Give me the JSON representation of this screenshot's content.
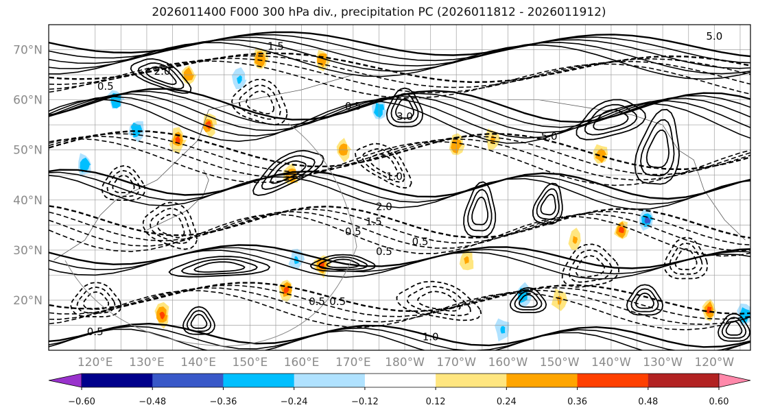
{
  "title": "2026011400 F000 300 hPa div., precipitation PC (2026011812 - 2026011912)",
  "lat_ticks": [
    {
      "lat": 70,
      "label": "70°N"
    },
    {
      "lat": 60,
      "label": "60°N"
    },
    {
      "lat": 50,
      "label": "50°N"
    },
    {
      "lat": 40,
      "label": "40°N"
    },
    {
      "lat": 30,
      "label": "30°N"
    },
    {
      "lat": 20,
      "label": "20°N"
    }
  ],
  "lon_ticks": [
    {
      "lon": 120,
      "label": "120°E"
    },
    {
      "lon": 130,
      "label": "130°E"
    },
    {
      "lon": 140,
      "label": "140°E"
    },
    {
      "lon": 150,
      "label": "150°E"
    },
    {
      "lon": 160,
      "label": "160°E"
    },
    {
      "lon": 170,
      "label": "170°E"
    },
    {
      "lon": 180,
      "label": "180°W"
    },
    {
      "lon": 190,
      "label": "170°W"
    },
    {
      "lon": 200,
      "label": "160°W"
    },
    {
      "lon": 210,
      "label": "150°W"
    },
    {
      "lon": 220,
      "label": "140°W"
    },
    {
      "lon": 230,
      "label": "130°W"
    },
    {
      "lon": 240,
      "label": "120°W"
    }
  ],
  "map_extent": {
    "lon_min": 111,
    "lon_max": 247,
    "lat_min": 10,
    "lat_max": 75
  },
  "colorbar": {
    "bins": [
      "#9932cc",
      "#00008b",
      "#3858c8",
      "#00bfff",
      "#b0e2ff",
      "#ffffff",
      "#ffe680",
      "#ffa500",
      "#ff4000",
      "#b22222",
      "#ff88aa"
    ],
    "ticks": [
      {
        "value": -0.6,
        "label": "−0.60"
      },
      {
        "value": -0.48,
        "label": "−0.48"
      },
      {
        "value": -0.36,
        "label": "−0.36"
      },
      {
        "value": -0.24,
        "label": "−0.24"
      },
      {
        "value": -0.12,
        "label": "−0.12"
      },
      {
        "value": 0.12,
        "label": "0.12"
      },
      {
        "value": 0.24,
        "label": "0.24"
      },
      {
        "value": 0.36,
        "label": "0.36"
      },
      {
        "value": 0.48,
        "label": "0.48"
      },
      {
        "value": 0.6,
        "label": "0.60"
      }
    ]
  },
  "contour_labels": [
    {
      "lon": 240,
      "lat": 72,
      "text": "5.0"
    },
    {
      "lon": 155,
      "lat": 70,
      "text": "1.5"
    },
    {
      "lon": 180,
      "lat": 56,
      "text": "3.0"
    },
    {
      "lon": 208,
      "lat": 52,
      "text": "5.0"
    },
    {
      "lon": 178,
      "lat": 44,
      "text": "1.0"
    },
    {
      "lon": 176,
      "lat": 38,
      "text": "2.0"
    },
    {
      "lon": 174,
      "lat": 35,
      "text": "1.5"
    },
    {
      "lon": 170,
      "lat": 33,
      "text": "0.5"
    },
    {
      "lon": 183,
      "lat": 31,
      "text": "0.5"
    },
    {
      "lon": 163,
      "lat": 19,
      "text": "0.5"
    },
    {
      "lon": 167,
      "lat": 19,
      "text": "0.5"
    },
    {
      "lon": 120,
      "lat": 13,
      "text": "0.5"
    },
    {
      "lon": 185,
      "lat": 12,
      "text": "1.0"
    },
    {
      "lon": 176,
      "lat": 29,
      "text": "0.5"
    },
    {
      "lon": 122,
      "lat": 62,
      "text": "0.5"
    },
    {
      "lon": 133,
      "lat": 65,
      "text": "2.0"
    },
    {
      "lon": 170,
      "lat": 58,
      "text": "0.5"
    }
  ],
  "precip_patches": [
    {
      "lon": 142,
      "lat": 55,
      "value": 0.4
    },
    {
      "lon": 136,
      "lat": 52,
      "value": 0.38
    },
    {
      "lon": 164,
      "lat": 68,
      "value": 0.3
    },
    {
      "lon": 175,
      "lat": 58,
      "value": -0.3
    },
    {
      "lon": 158,
      "lat": 45,
      "value": 0.3
    },
    {
      "lon": 168,
      "lat": 50,
      "value": 0.3
    },
    {
      "lon": 190,
      "lat": 51,
      "value": 0.3
    },
    {
      "lon": 197,
      "lat": 52,
      "value": 0.28
    },
    {
      "lon": 218,
      "lat": 49,
      "value": 0.3
    },
    {
      "lon": 222,
      "lat": 34,
      "value": 0.38
    },
    {
      "lon": 227,
      "lat": 36,
      "value": -0.4
    },
    {
      "lon": 164,
      "lat": 27,
      "value": 0.4
    },
    {
      "lon": 157,
      "lat": 22,
      "value": 0.38
    },
    {
      "lon": 239,
      "lat": 18,
      "value": 0.42
    },
    {
      "lon": 152,
      "lat": 68,
      "value": 0.3
    },
    {
      "lon": 138,
      "lat": 65,
      "value": 0.3
    },
    {
      "lon": 124,
      "lat": 60,
      "value": -0.3
    },
    {
      "lon": 118,
      "lat": 47,
      "value": -0.3
    },
    {
      "lon": 203,
      "lat": 21,
      "value": -0.3
    },
    {
      "lon": 210,
      "lat": 20,
      "value": 0.26
    },
    {
      "lon": 133,
      "lat": 17,
      "value": 0.36
    },
    {
      "lon": 246,
      "lat": 17,
      "value": -0.36
    },
    {
      "lon": 192,
      "lat": 28,
      "value": 0.26
    },
    {
      "lon": 213,
      "lat": 32,
      "value": 0.28
    },
    {
      "lon": 199,
      "lat": 14,
      "value": -0.28
    },
    {
      "lon": 159,
      "lat": 28,
      "value": -0.28
    },
    {
      "lon": 128,
      "lat": 54,
      "value": -0.3
    },
    {
      "lon": 148,
      "lat": 64,
      "value": -0.26
    }
  ]
}
